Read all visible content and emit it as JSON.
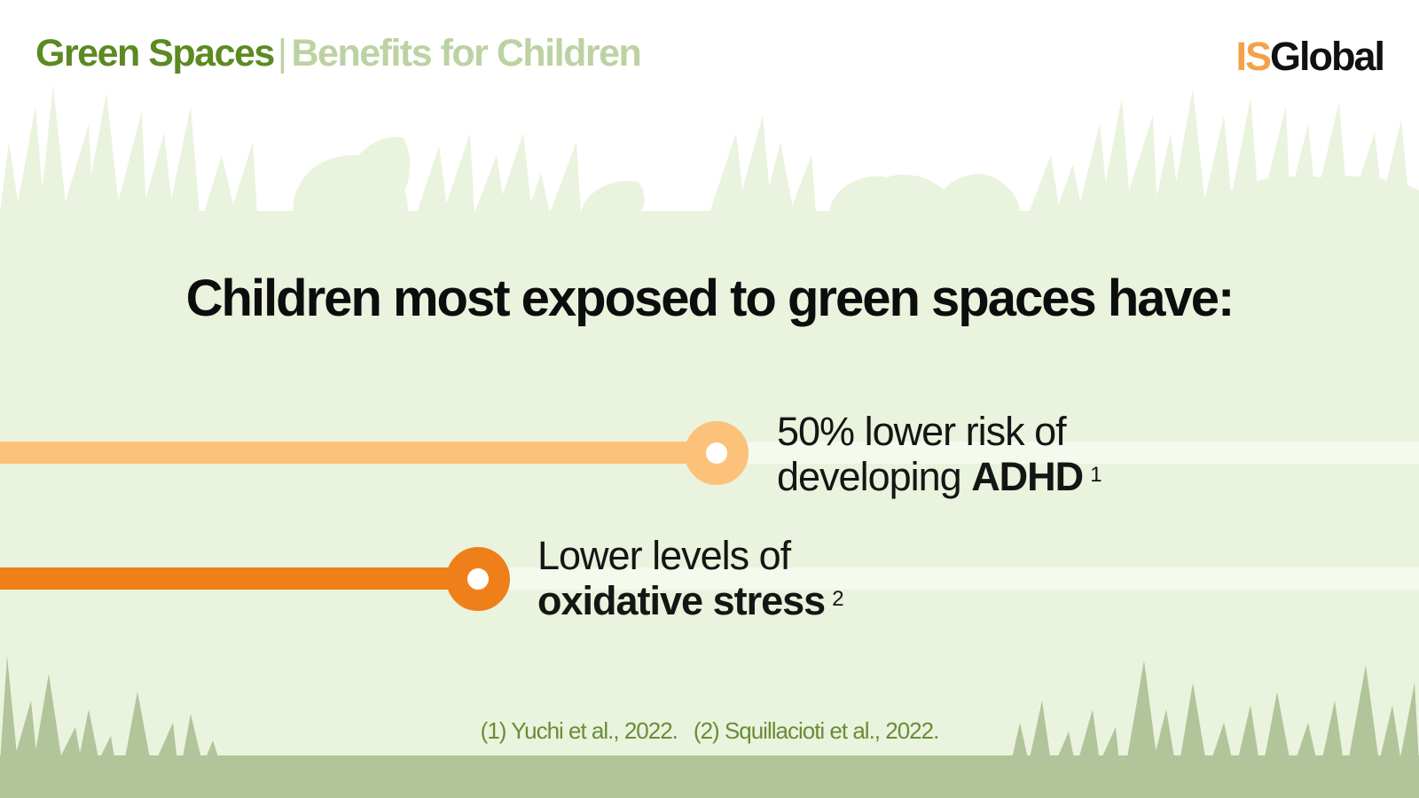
{
  "header": {
    "title_main": "Green Spaces",
    "separator": "|",
    "title_sub": "Benefits for Children"
  },
  "logo": {
    "part1": "IS",
    "part2": "Global"
  },
  "headline": "Children most exposed to green spaces have:",
  "facts": [
    {
      "line1": "50% lower risk of",
      "line2_prefix": "developing ",
      "line2_bold": "ADHD",
      "ref": "1",
      "color": "#fcc27a"
    },
    {
      "line1": "Lower levels of",
      "line2_prefix": "",
      "line2_bold": "oxidative stress",
      "ref": "2",
      "color": "#ef8019"
    }
  ],
  "references": [
    "(1) Yuchi et al., 2022.",
    "(2) Squillacioti et al., 2022."
  ],
  "colors": {
    "header_green": "#5c8a22",
    "header_light_green": "#bcd2a2",
    "panel": "#eaf3dd",
    "ground": "#b2c49a",
    "accent_light_orange": "#fcc27a",
    "accent_orange": "#ef8019"
  },
  "icons": [
    "plant-silhouette-decoration",
    "grass-decoration"
  ]
}
